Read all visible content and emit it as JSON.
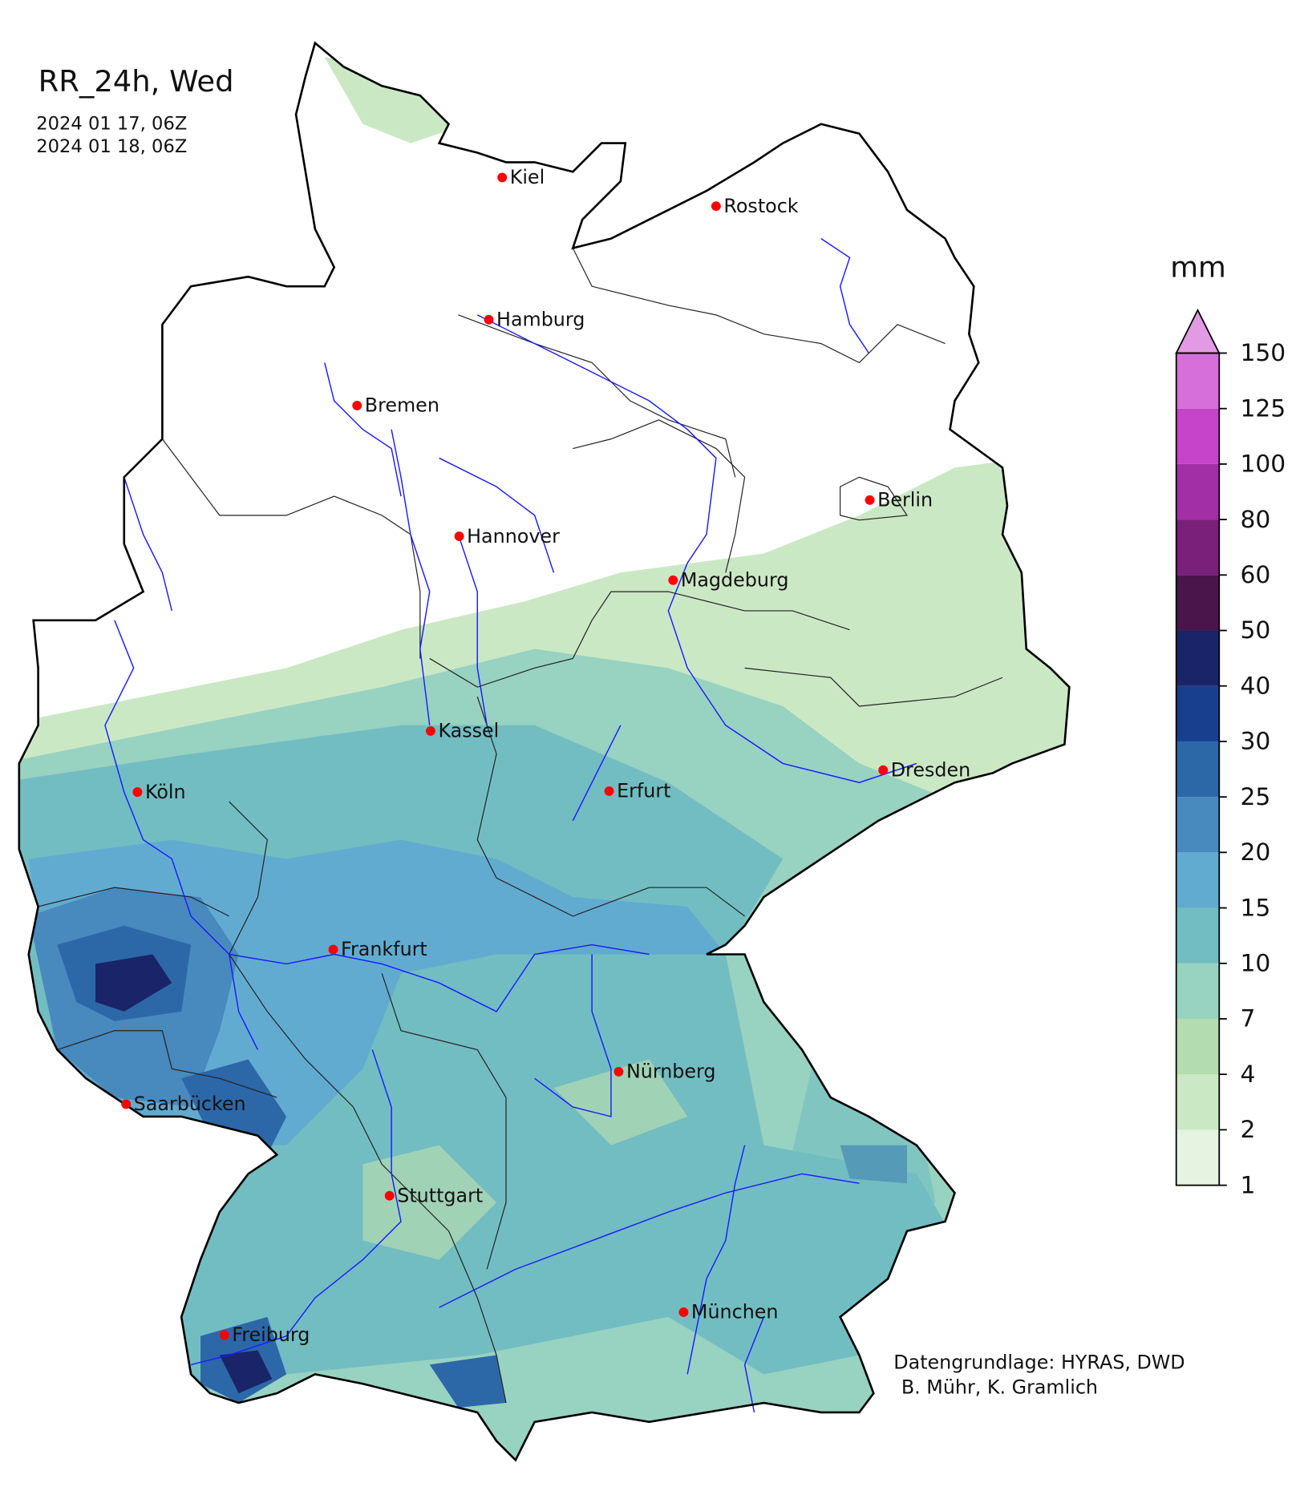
{
  "header": {
    "title": "RR_24h, Wed",
    "start": "2024 01 17, 06Z",
    "end": "2024 01 18, 06Z"
  },
  "cities": [
    "Kiel",
    "Rostock",
    "Hamburg",
    "Bremen",
    "Berlin",
    "Hannover",
    "Magdeburg",
    "Kassel",
    "Dresden",
    "Köln",
    "Erfurt",
    "Frankfurt",
    "Nürnberg",
    "Saarbücken",
    "Stuttgart",
    "München",
    "Freiburg"
  ],
  "colorbar": {
    "label": "mm",
    "ticks": [
      1,
      2,
      4,
      7,
      10,
      15,
      20,
      25,
      30,
      40,
      50,
      60,
      80,
      100,
      125,
      150
    ],
    "colors": [
      "#e5f3e0",
      "#cbe8c5",
      "#b3dcb0",
      "#98d2c0",
      "#72bdc2",
      "#62abd0",
      "#4889be",
      "#2c68a8",
      "#173f8d",
      "#1a2468",
      "#4a154a",
      "#7a1f7a",
      "#a22fa5",
      "#c644c9",
      "#d66fd9"
    ],
    "extend_color": "#e29ae3"
  },
  "credits": [
    "Datengrundlage: HYRAS, DWD",
    "B. Mühr, K. Gramlich"
  ]
}
